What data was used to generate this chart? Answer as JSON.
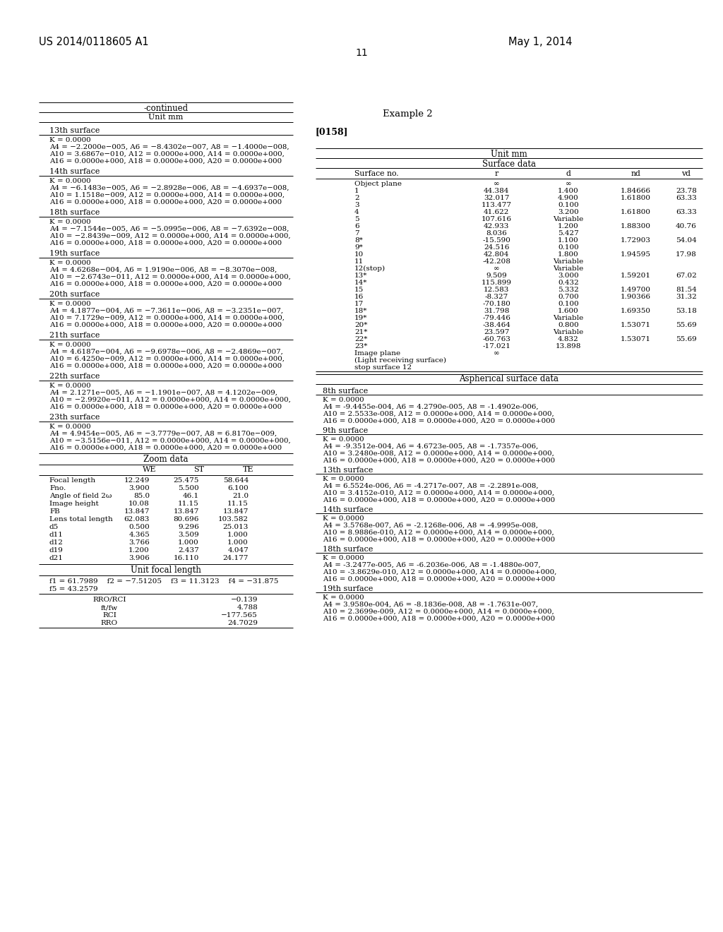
{
  "bg_color": "#ffffff",
  "page_number": "11",
  "header_left": "US 2014/0118605 A1",
  "header_right": "May 1, 2014",
  "left_col_title": "-continued",
  "left_col_subtitle": "Unit mm",
  "right_col_title": "Example 2",
  "right_col_ref": "[0158]",
  "right_table_title": "Unit mm",
  "right_table_subtitle": "Surface data",
  "right_table_headers": [
    "Surface no.",
    "r",
    "d",
    "nd",
    "vd"
  ],
  "right_table_rows": [
    [
      "Object plane",
      "∞",
      "∞",
      "",
      ""
    ],
    [
      "1",
      "44.384",
      "1.400",
      "1.84666",
      "23.78"
    ],
    [
      "2",
      "32.017",
      "4.900",
      "1.61800",
      "63.33"
    ],
    [
      "3",
      "113.477",
      "0.100",
      "",
      ""
    ],
    [
      "4",
      "41.622",
      "3.200",
      "1.61800",
      "63.33"
    ],
    [
      "5",
      "107.616",
      "Variable",
      "",
      ""
    ],
    [
      "6",
      "42.933",
      "1.200",
      "1.88300",
      "40.76"
    ],
    [
      "7",
      "8.036",
      "5.427",
      "",
      ""
    ],
    [
      "8*",
      "-15.590",
      "1.100",
      "1.72903",
      "54.04"
    ],
    [
      "9*",
      "24.516",
      "0.100",
      "",
      ""
    ],
    [
      "10",
      "42.804",
      "1.800",
      "1.94595",
      "17.98"
    ],
    [
      "11",
      "-42.208",
      "Variable",
      "",
      ""
    ],
    [
      "12(stop)",
      "∞",
      "Variable",
      "",
      ""
    ],
    [
      "13*",
      "9.509",
      "3.000",
      "1.59201",
      "67.02"
    ],
    [
      "14*",
      "115.899",
      "0.432",
      "",
      ""
    ],
    [
      "15",
      "12.583",
      "5.332",
      "1.49700",
      "81.54"
    ],
    [
      "16",
      "-8.327",
      "0.700",
      "1.90366",
      "31.32"
    ],
    [
      "17",
      "-70.180",
      "0.100",
      "",
      ""
    ],
    [
      "18*",
      "31.798",
      "1.600",
      "1.69350",
      "53.18"
    ],
    [
      "19*",
      "-79.446",
      "Variable",
      "",
      ""
    ],
    [
      "20*",
      "-38.464",
      "0.800",
      "1.53071",
      "55.69"
    ],
    [
      "21*",
      "23.597",
      "Variable",
      "",
      ""
    ],
    [
      "22*",
      "-60.763",
      "4.832",
      "1.53071",
      "55.69"
    ],
    [
      "23*",
      "-17.021",
      "13.898",
      "",
      ""
    ],
    [
      "Image plane",
      "∞",
      "",
      "",
      ""
    ],
    [
      "(Light receiving surface)",
      "",
      "",
      "",
      ""
    ],
    [
      "stop surface 12",
      "",
      "",
      "",
      ""
    ]
  ],
  "right_asph_title": "Aspherical surface data",
  "right_sections_right": [
    {
      "header": "8th surface",
      "lines": [
        "K = 0.0000",
        "A4 = -9.4455e-004, A6 = 4.2790e-005, A8 = -1.4902e-006,",
        "A10 = 2.5533e-008, A12 = 0.0000e+000, A14 = 0.0000e+000,",
        "A16 = 0.0000e+000, A18 = 0.0000e+000, A20 = 0.0000e+000"
      ]
    },
    {
      "header": "9th surface",
      "lines": [
        "K = 0.0000",
        "A4 = -9.3512e-004, A6 = 4.6723e-005, A8 = -1.7357e-006,",
        "A10 = 3.2480e-008, A12 = 0.0000e+000, A14 = 0.0000e+000,",
        "A16 = 0.0000e+000, A18 = 0.0000e+000, A20 = 0.0000e+000"
      ]
    },
    {
      "header": "13th surface",
      "lines": [
        "K = 0.0000",
        "A4 = 6.5524e-006, A6 = -4.2717e-007, A8 = -2.2891e-008,",
        "A10 = 3.4152e-010, A12 = 0.0000e+000, A14 = 0.0000e+000,",
        "A16 = 0.0000e+000, A18 = 0.0000e+000, A20 = 0.0000e+000"
      ]
    },
    {
      "header": "14th surface",
      "lines": [
        "K = 0.0000",
        "A4 = 3.5768e-007, A6 = -2.1268e-006, A8 = -4.9995e-008,",
        "A10 = 8.9886e-010, A12 = 0.0000e+000, A14 = 0.0000e+000,",
        "A16 = 0.0000e+000, A18 = 0.0000e+000, A20 = 0.0000e+000"
      ]
    },
    {
      "header": "18th surface",
      "lines": [
        "K = 0.0000",
        "A4 = -3.2477e-005, A6 = -6.2036e-006, A8 = -1.4880e-007,",
        "A10 = -3.8629e-010, A12 = 0.0000e+000, A14 = 0.0000e+000,",
        "A16 = 0.0000e+000, A18 = 0.0000e+000, A20 = 0.0000e+000"
      ]
    },
    {
      "header": "19th surface",
      "lines": [
        "K = 0.0000",
        "A4 = 3.9580e-004, A6 = -8.1836e-008, A8 = -1.7631e-007,",
        "A10 = 2.3699e-009, A12 = 0.0000e+000, A14 = 0.0000e+000,",
        "A16 = 0.0000e+000, A18 = 0.0000e+000, A20 = 0.0000e+000"
      ]
    }
  ],
  "left_sections": [
    {
      "header": "13th surface",
      "lines": [
        "K = 0.0000",
        "A4 = −2.2000e−005, A6 = −8.4302e−007, A8 = −1.4000e−008,",
        "A10 = 3.6867e−010, A12 = 0.0000e+000, A14 = 0.0000e+000,",
        "A16 = 0.0000e+000, A18 = 0.0000e+000, A20 = 0.0000e+000"
      ]
    },
    {
      "header": "14th surface",
      "lines": [
        "K = 0.0000",
        "A4 = −6.1483e−005, A6 = −2.8928e−006, A8 = −4.6937e−008,",
        "A10 = 1.1518e−009, A12 = 0.0000e+000, A14 = 0.0000e+000,",
        "A16 = 0.0000e+000, A18 = 0.0000e+000, A20 = 0.0000e+000"
      ]
    },
    {
      "header": "18th surface",
      "lines": [
        "K = 0.0000",
        "A4 = −7.1544e−005, A6 = −5.0995e−006, A8 = −7.6392e−008,",
        "A10 = −2.8439e−009, A12 = 0.0000e+000, A14 = 0.0000e+000,",
        "A16 = 0.0000e+000, A18 = 0.0000e+000, A20 = 0.0000e+000"
      ]
    },
    {
      "header": "19th surface",
      "lines": [
        "K = 0.0000",
        "A4 = 4.6268e−004, A6 = 1.9190e−006, A8 = −8.3070e−008,",
        "A10 = −2.6743e−011, A12 = 0.0000e+000, A14 = 0.0000e+000,",
        "A16 = 0.0000e+000, A18 = 0.0000e+000, A20 = 0.0000e+000"
      ]
    },
    {
      "header": "20th surface",
      "lines": [
        "K = 0.0000",
        "A4 = 4.1877e−004, A6 = −7.3611e−006, A8 = −3.2351e−007,",
        "A10 = 7.1729e−009, A12 = 0.0000e+000, A14 = 0.0000e+000,",
        "A16 = 0.0000e+000, A18 = 0.0000e+000, A20 = 0.0000e+000"
      ]
    },
    {
      "header": "21th surface",
      "lines": [
        "K = 0.0000",
        "A4 = 4.6187e−004, A6 = −9.6978e−006, A8 = −2.4869e−007,",
        "A10 = 6.4250e−009, A12 = 0.0000e+000, A14 = 0.0000e+000,",
        "A16 = 0.0000e+000, A18 = 0.0000e+000, A20 = 0.0000e+000"
      ]
    },
    {
      "header": "22th surface",
      "lines": [
        "K = 0.0000",
        "A4 = 2.1271e−005, A6 = −1.1901e−007, A8 = 4.1202e−009,",
        "A10 = −2.9920e−011, A12 = 0.0000e+000, A14 = 0.0000e+000,",
        "A16 = 0.0000e+000, A18 = 0.0000e+000, A20 = 0.0000e+000"
      ]
    },
    {
      "header": "23th surface",
      "lines": [
        "K = 0.0000",
        "A4 = 4.9454e−005, A6 = −3.7779e−007, A8 = 6.8170e−009,",
        "A10 = −3.5156e−011, A12 = 0.0000e+000, A14 = 0.0000e+000,",
        "A16 = 0.0000e+000, A18 = 0.0000e+000, A20 = 0.0000e+000"
      ]
    }
  ],
  "zoom_title": "Zoom data",
  "zoom_headers": [
    "",
    "WE",
    "ST",
    "TE"
  ],
  "zoom_rows": [
    [
      "Focal length",
      "12.249",
      "25.475",
      "58.644"
    ],
    [
      "Fno.",
      "3.900",
      "5.500",
      "6.100"
    ],
    [
      "Angle of field 2ω",
      "85.0",
      "46.1",
      "21.0"
    ],
    [
      "Image height",
      "10.08",
      "11.15",
      "11.15"
    ],
    [
      "FB",
      "13.847",
      "13.847",
      "13.847"
    ],
    [
      "Lens total length",
      "62.083",
      "80.696",
      "103.582"
    ],
    [
      "d5",
      "0.500",
      "9.296",
      "25.013"
    ],
    [
      "d11",
      "4.365",
      "3.509",
      "1.000"
    ],
    [
      "d12",
      "3.766",
      "1.000",
      "1.000"
    ],
    [
      "d19",
      "1.200",
      "2.437",
      "4.047"
    ],
    [
      "d21",
      "3.906",
      "16.110",
      "24.177"
    ]
  ],
  "focal_title": "Unit focal length",
  "focal_line1": "f1 = 61.7989    f2 = −7.51205    f3 = 11.3123    f4 = −31.875",
  "focal_line2": "f5 = 43.2579",
  "rro_rows": [
    [
      "RRO/RCI",
      "−0.139"
    ],
    [
      "ft/fw",
      "4.788"
    ],
    [
      "RCI",
      "−177.565"
    ],
    [
      "RRO",
      "24.7029"
    ]
  ]
}
